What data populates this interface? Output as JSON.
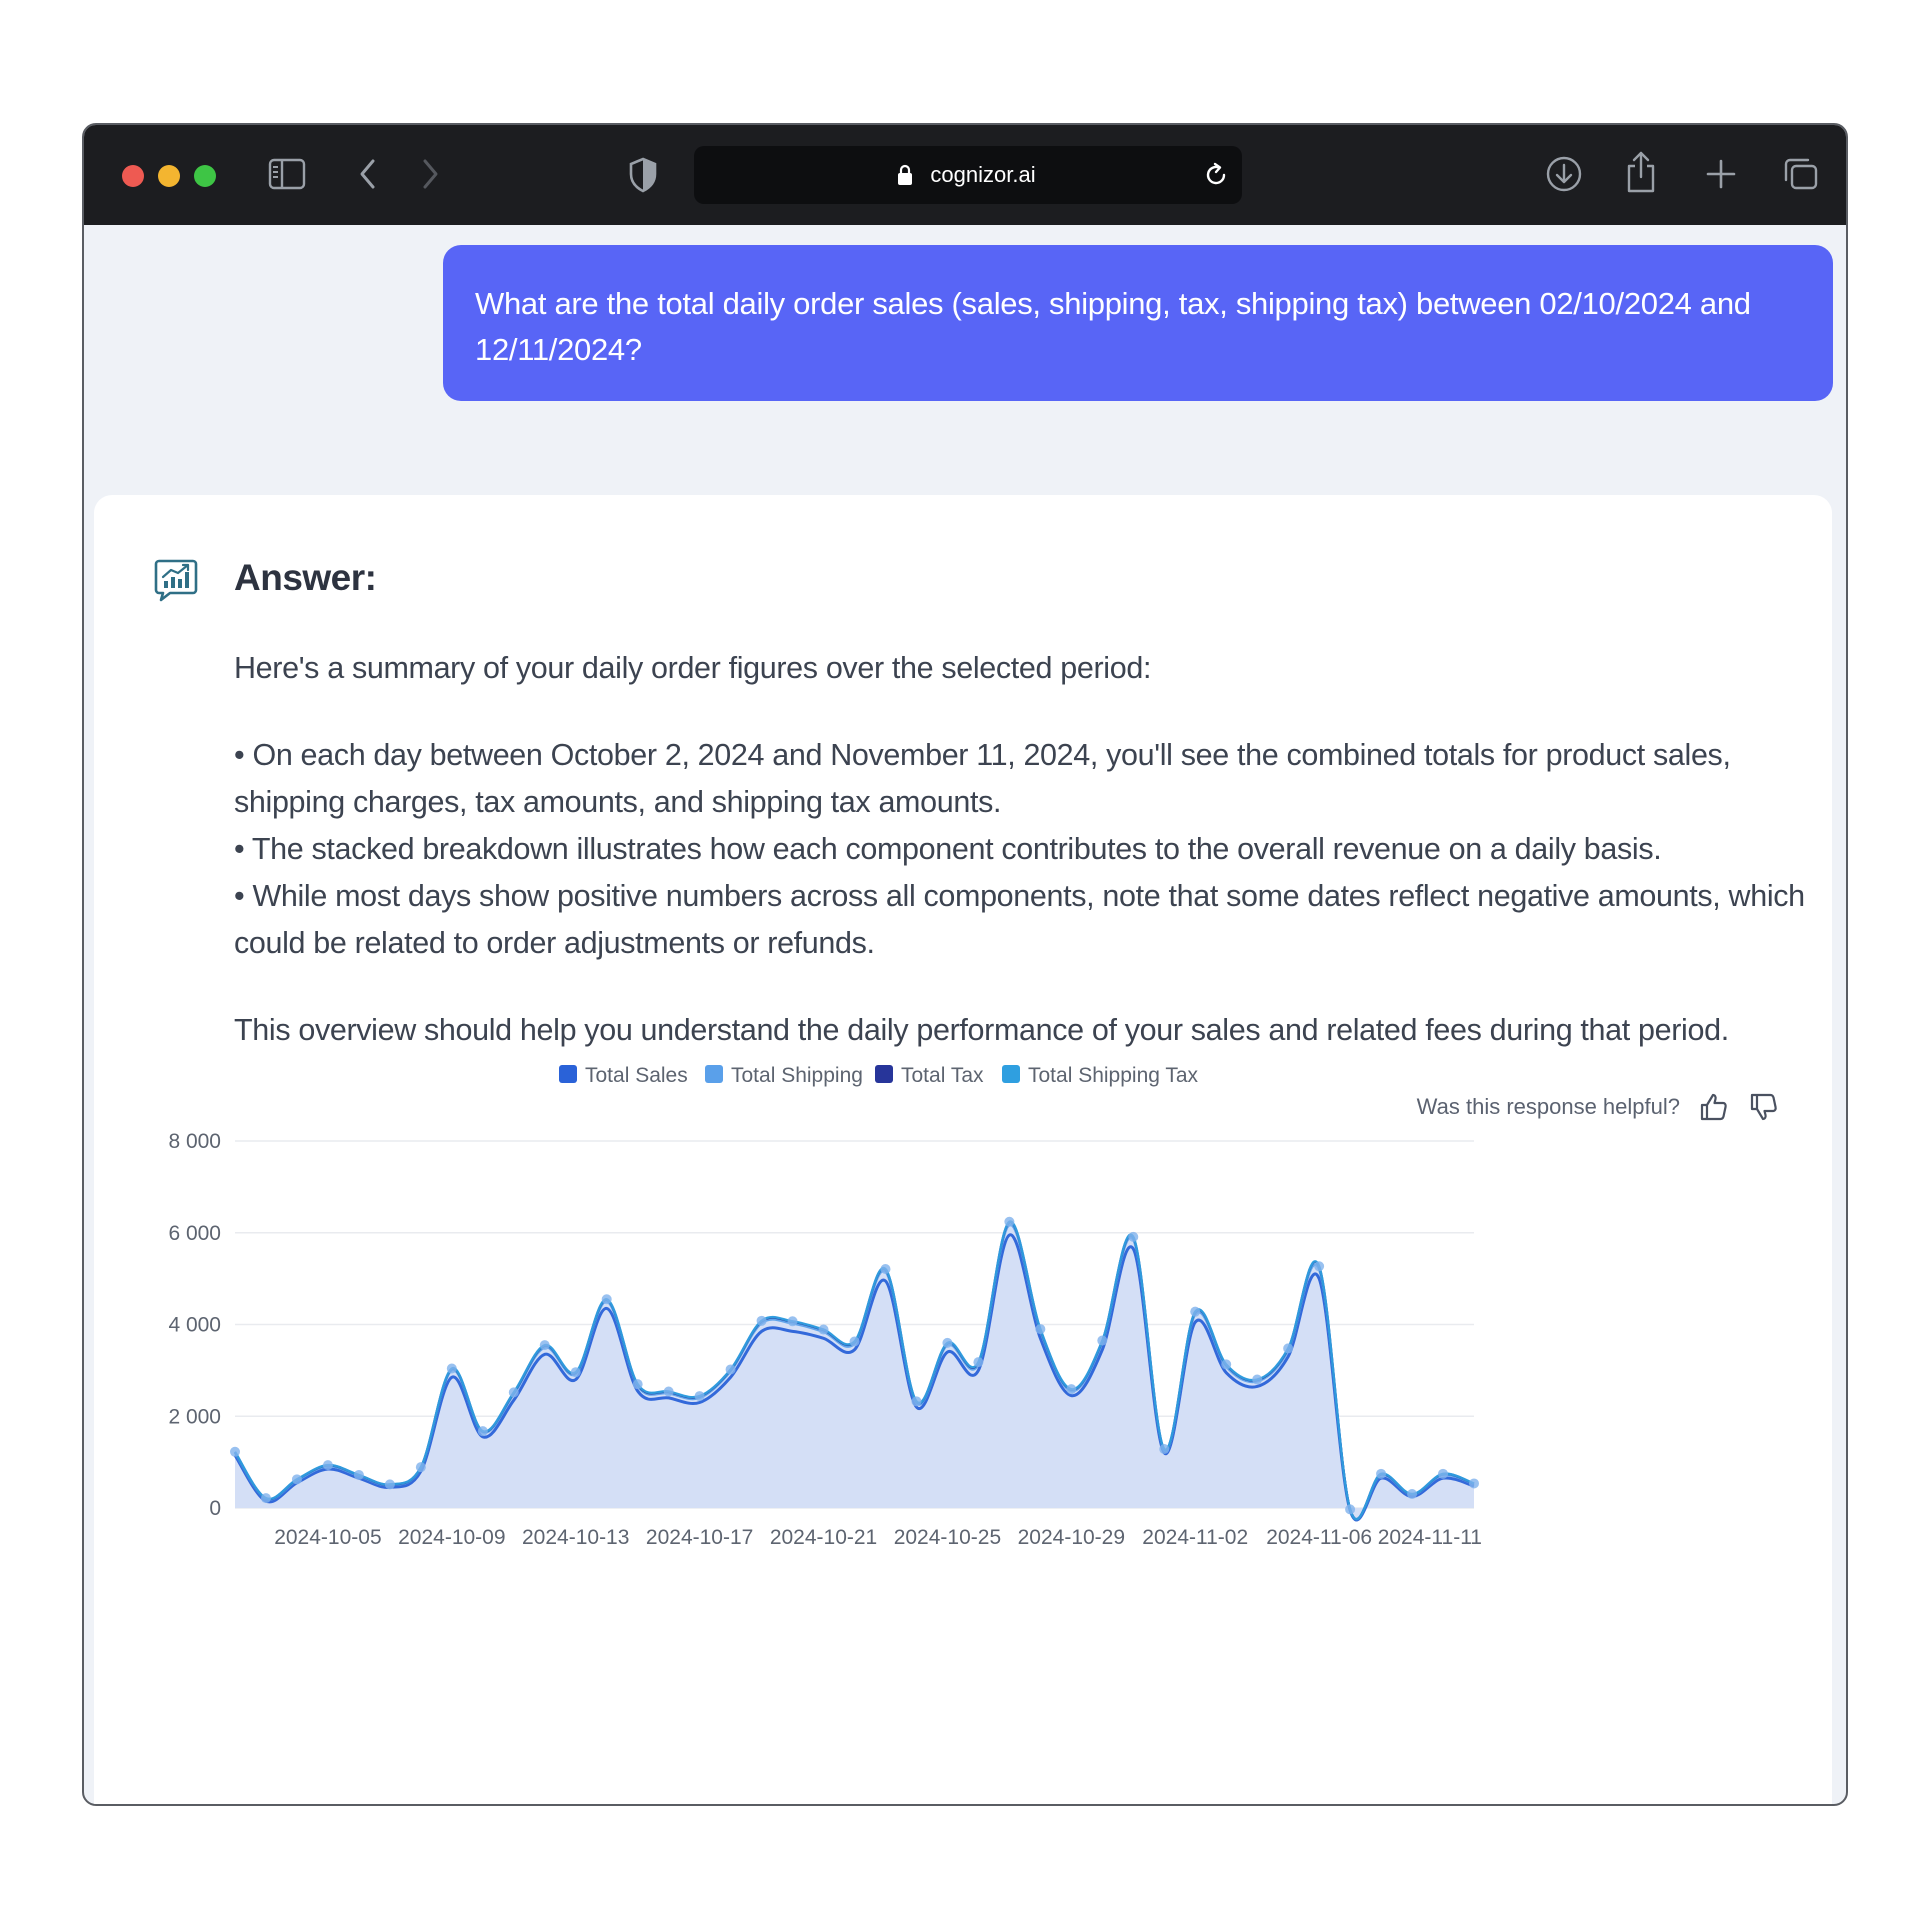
{
  "browser": {
    "url": "cognizor.ai",
    "icons": [
      "sidebar-icon",
      "back-icon",
      "forward-icon",
      "shield-icon",
      "lock-icon",
      "reload-icon",
      "download-icon",
      "share-icon",
      "new-tab-icon",
      "tabs-overview-icon"
    ]
  },
  "question": "What are the total daily order sales (sales, shipping, tax, shipping tax) between 02/10/2024 and 12/11/2024?",
  "answer": {
    "title": "Answer:",
    "intro": "Here's a summary of your daily order figures over the selected period:",
    "bullets": [
      "• On each day between October 2, 2024 and November 11, 2024, you'll see the combined totals for product sales, shipping charges, tax amounts, and shipping tax amounts.",
      "• The stacked breakdown illustrates how each component contributes to the overall revenue on a daily basis.",
      "• While most days show positive numbers across all components, note that some dates reflect negative amounts, which could be related to order adjustments or refunds."
    ],
    "outro": "This overview should help you understand the daily performance of your sales and related fees during that period.",
    "feedback_prompt": "Was this response helpful?"
  },
  "chart_data": {
    "type": "area",
    "stacked": true,
    "x": [
      "2024-10-02",
      "2024-10-03",
      "2024-10-04",
      "2024-10-05",
      "2024-10-06",
      "2024-10-07",
      "2024-10-08",
      "2024-10-09",
      "2024-10-10",
      "2024-10-11",
      "2024-10-12",
      "2024-10-13",
      "2024-10-14",
      "2024-10-15",
      "2024-10-16",
      "2024-10-17",
      "2024-10-18",
      "2024-10-19",
      "2024-10-20",
      "2024-10-21",
      "2024-10-22",
      "2024-10-23",
      "2024-10-24",
      "2024-10-25",
      "2024-10-26",
      "2024-10-27",
      "2024-10-28",
      "2024-10-29",
      "2024-10-30",
      "2024-10-31",
      "2024-11-01",
      "2024-11-02",
      "2024-11-03",
      "2024-11-04",
      "2024-11-05",
      "2024-11-06",
      "2024-11-07",
      "2024-11-08",
      "2024-11-09",
      "2024-11-10",
      "2024-11-11"
    ],
    "tick_labels": [
      "2024-10-05",
      "2024-10-09",
      "2024-10-13",
      "2024-10-17",
      "2024-10-21",
      "2024-10-25",
      "2024-10-29",
      "2024-11-02",
      "2024-11-06",
      "2024-11-11"
    ],
    "series": [
      {
        "name": "Total Sales",
        "values": [
          1150,
          150,
          550,
          850,
          650,
          450,
          800,
          2850,
          1550,
          2350,
          3350,
          2800,
          4350,
          2550,
          2400,
          2300,
          2850,
          3850,
          3850,
          3700,
          3450,
          4950,
          2200,
          3400,
          3000,
          5950,
          3700,
          2450,
          3450,
          5650,
          1200,
          4050,
          2950,
          2650,
          3300,
          5000,
          -50,
          650,
          250,
          650,
          480
        ]
      },
      {
        "name": "Total Shipping",
        "values": [
          50,
          50,
          50,
          60,
          50,
          50,
          70,
          150,
          100,
          130,
          150,
          120,
          150,
          110,
          100,
          100,
          130,
          180,
          170,
          140,
          130,
          200,
          90,
          150,
          130,
          220,
          150,
          100,
          150,
          200,
          60,
          170,
          130,
          110,
          130,
          200,
          20,
          70,
          40,
          70,
          40
        ]
      },
      {
        "name": "Total Tax",
        "values": [
          20,
          10,
          20,
          20,
          15,
          10,
          15,
          30,
          20,
          30,
          40,
          30,
          40,
          30,
          30,
          30,
          30,
          40,
          40,
          40,
          40,
          50,
          30,
          40,
          40,
          60,
          40,
          30,
          40,
          50,
          20,
          50,
          40,
          30,
          40,
          60,
          0,
          20,
          10,
          20,
          10
        ]
      },
      {
        "name": "Total Shipping Tax",
        "values": [
          5,
          5,
          5,
          5,
          5,
          5,
          5,
          10,
          5,
          10,
          10,
          10,
          10,
          10,
          10,
          10,
          10,
          10,
          10,
          10,
          10,
          10,
          5,
          10,
          10,
          10,
          10,
          10,
          10,
          10,
          5,
          10,
          10,
          10,
          10,
          10,
          0,
          5,
          5,
          5,
          5
        ]
      }
    ],
    "ylim": [
      0,
      8000
    ],
    "yticks": [
      0,
      2000,
      4000,
      6000,
      8000
    ],
    "ytick_labels": [
      "0",
      "2 000",
      "4 000",
      "6 000",
      "8 000"
    ],
    "colors": [
      "#2a62d8",
      "#5aa0ea",
      "#27359a",
      "#2f9fe0"
    ],
    "grid": true,
    "legend": "top-center"
  }
}
